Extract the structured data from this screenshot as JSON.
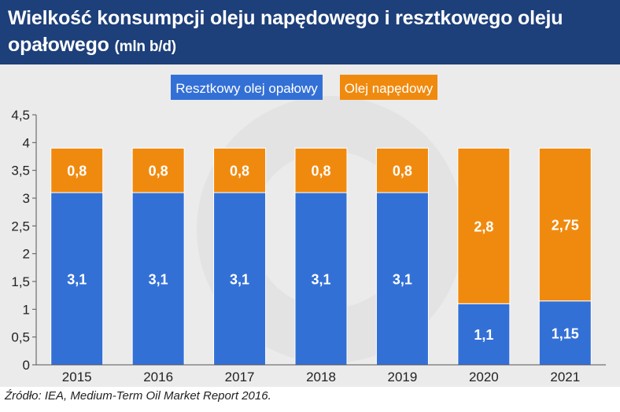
{
  "header": {
    "title": "Wielkość konsumpcji oleju napędowego i resztkowego oleju opałowego",
    "unit": "(mln b/d)"
  },
  "chart_data": {
    "type": "bar",
    "stacked": true,
    "categories": [
      "2015",
      "2016",
      "2017",
      "2018",
      "2019",
      "2020",
      "2021"
    ],
    "series": [
      {
        "name": "Resztkowy olej opałowy",
        "color": "#3370d6",
        "values": [
          3.1,
          3.1,
          3.1,
          3.1,
          3.1,
          1.1,
          1.15
        ],
        "labels": [
          "3,1",
          "3,1",
          "3,1",
          "3,1",
          "3,1",
          "1,1",
          "1,15"
        ]
      },
      {
        "name": "Olej napędowy",
        "color": "#f08a0e",
        "values": [
          0.8,
          0.8,
          0.8,
          0.8,
          0.8,
          2.8,
          2.75
        ],
        "labels": [
          "0,8",
          "0,8",
          "0,8",
          "0,8",
          "0,8",
          "2,8",
          "2,75"
        ]
      }
    ],
    "ylim": [
      0,
      4.5
    ],
    "yticks": [
      0,
      0.5,
      1,
      1.5,
      2,
      2.5,
      3,
      3.5,
      4,
      4.5
    ],
    "ytick_labels": [
      "0",
      "0,5",
      "1",
      "1,5",
      "2",
      "2,5",
      "3",
      "3,5",
      "4",
      "4,5"
    ],
    "grid": false,
    "legend": "top-center"
  },
  "footer": {
    "source": "Źródło: IEA, Medium-Term Oil Market Report 2016."
  }
}
